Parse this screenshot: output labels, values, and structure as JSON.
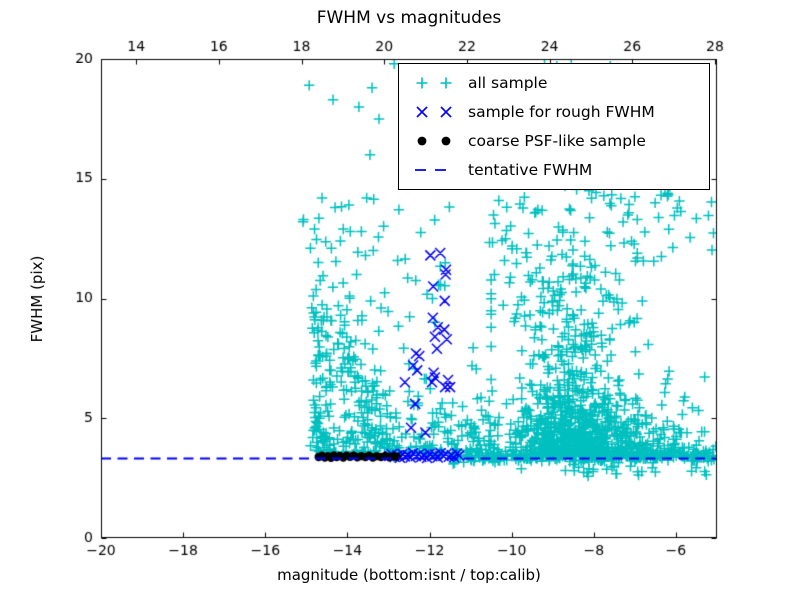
{
  "figure": {
    "background": "#ffffff"
  },
  "chart_data": {
    "type": "scatter",
    "title": "FWHM vs magnitudes",
    "xlabel": "magnitude (bottom:isnt / top:calib)",
    "ylabel": "FWHM (pix)",
    "xlim": [
      -20,
      -5
    ],
    "ylim": [
      0,
      20
    ],
    "grid": false,
    "legend_position": "upper right",
    "x_ticks_bottom": {
      "values": [
        -20,
        -18,
        -16,
        -14,
        -12,
        -10,
        -8,
        -6
      ],
      "labels": [
        "−20",
        "−18",
        "−16",
        "−14",
        "−12",
        "−10",
        "−8",
        "−6"
      ]
    },
    "x_axis_top": {
      "range": [
        13.15,
        28.05
      ],
      "values": [
        14,
        16,
        18,
        20,
        22,
        24,
        26,
        28
      ],
      "labels": [
        "14",
        "16",
        "18",
        "20",
        "22",
        "24",
        "26",
        "28"
      ]
    },
    "y_ticks": {
      "values": [
        0,
        5,
        10,
        15,
        20
      ],
      "labels": [
        "0",
        "5",
        "10",
        "15",
        "20"
      ]
    },
    "tentative_fwhm": 3.32,
    "seed": 7,
    "series": [
      {
        "name": "all sample",
        "marker": "plus",
        "color": "#00bfbf",
        "points": [
          [
            -14.93,
            18.9
          ],
          [
            -14.35,
            18.3
          ],
          [
            -13.4,
            18.8
          ],
          [
            -12.86,
            19.8
          ],
          [
            -12.23,
            19.5
          ],
          [
            -11.86,
            19.5
          ],
          [
            -11.55,
            19.1
          ],
          [
            -12.02,
            19.0
          ],
          [
            -15.08,
            13.2
          ],
          [
            -14.71,
            11.5
          ],
          [
            -14.39,
            12.1
          ],
          [
            -13.93,
            12.8
          ],
          [
            -13.56,
            11.8
          ],
          [
            -14.22,
            9.7
          ],
          [
            -13.18,
            9.6
          ],
          [
            -13.72,
            18.0
          ],
          [
            -13.23,
            17.5
          ],
          [
            -13.45,
            16.0
          ],
          [
            -13.53,
            14.2
          ],
          [
            -14.3,
            13.8
          ],
          [
            -15.07,
            13.3
          ],
          [
            -14.8,
            12.9
          ],
          [
            -14.1,
            12.9
          ],
          [
            -13.66,
            12.8
          ],
          [
            -14.17,
            12.4
          ],
          [
            -13.37,
            12.0
          ],
          [
            -14.9,
            12.1
          ],
          [
            -9.2,
            19.8
          ],
          [
            -8.9,
            19.7
          ],
          [
            -8.55,
            19.8
          ],
          [
            -7.6,
            19.7
          ],
          [
            -7.75,
            19.3
          ],
          [
            -7.04,
            18.3
          ],
          [
            -6.38,
            18.9
          ],
          [
            -8.53,
            17.5
          ],
          [
            -6.05,
            17.1
          ],
          [
            -6.6,
            16.4
          ],
          [
            -8.75,
            15.4
          ],
          [
            -8.7,
            14.7
          ],
          [
            -5.6,
            15.9
          ],
          [
            -5.3,
            14.9
          ],
          [
            -10.15,
            12.5
          ],
          [
            -10.42,
            11.0
          ],
          [
            -9.55,
            16.1
          ],
          [
            -7.3,
            16.8
          ],
          [
            -6.9,
            15.6
          ]
        ],
        "clusters": [
          {
            "n": 300,
            "x": {
              "d": "u",
              "a": -11.45,
              "b": -5.03
            },
            "y": {
              "d": "n",
              "m": 3.42,
              "s": 0.13
            }
          },
          {
            "n": 25,
            "x": {
              "d": "u",
              "a": -14.6,
              "b": -11.5
            },
            "y": {
              "d": "n",
              "m": 3.58,
              "s": 0.1
            }
          },
          {
            "n": 480,
            "x": {
              "d": "n",
              "m": -8.55,
              "s": 0.6,
              "min": -10.8,
              "max": -5.05
            },
            "y": {
              "d": "e",
              "base": 3.45,
              "scale": 1.7,
              "max": 12.3
            }
          },
          {
            "n": 420,
            "x": {
              "d": "n",
              "m": -7.9,
              "s": 1.2,
              "min": -10.8,
              "max": -5.03
            },
            "y": {
              "d": "e",
              "base": 3.4,
              "scale": 0.95,
              "max": 7.0
            }
          },
          {
            "n": 120,
            "x": {
              "d": "n",
              "m": -8.6,
              "s": 0.9,
              "min": -10.5,
              "max": -5.1
            },
            "y": {
              "d": "u",
              "a": 7.5,
              "b": 11.5
            }
          },
          {
            "n": 85,
            "x": {
              "d": "u",
              "a": -10.6,
              "b": -5.05
            },
            "y": {
              "d": "u",
              "a": 11.5,
              "b": 14.5
            }
          },
          {
            "n": 22,
            "x": {
              "d": "u",
              "a": -9.4,
              "b": -5.2
            },
            "y": {
              "d": "u",
              "a": 14.5,
              "b": 16.6
            }
          },
          {
            "n": 170,
            "x": {
              "d": "u",
              "a": -14.85,
              "b": -11.35
            },
            "y": {
              "d": "e",
              "base": 3.5,
              "scale": 1.25,
              "max": 8.6
            }
          },
          {
            "n": 38,
            "x": {
              "d": "u",
              "a": -14.85,
              "b": -11.4
            },
            "y": {
              "d": "u",
              "a": 8.6,
              "b": 14.2
            }
          },
          {
            "n": 48,
            "x": {
              "d": "n",
              "m": -14.72,
              "s": 0.09,
              "min": -15.0,
              "max": -14.5
            },
            "y": {
              "d": "u",
              "a": 3.6,
              "b": 11.2
            }
          },
          {
            "n": 55,
            "x": {
              "d": "n",
              "m": -14.15,
              "s": 0.28
            },
            "y": {
              "d": "n",
              "m": 7.6,
              "s": 1.1
            }
          },
          {
            "n": 45,
            "x": {
              "d": "n",
              "m": -13.55,
              "s": 0.3
            },
            "y": {
              "d": "n",
              "m": 5.6,
              "s": 0.9
            }
          },
          {
            "n": 45,
            "x": {
              "d": "u",
              "a": -11.35,
              "b": -10.3
            },
            "y": {
              "d": "e",
              "base": 3.5,
              "scale": 1.3,
              "max": 8.5
            }
          },
          {
            "n": 25,
            "x": {
              "d": "u",
              "a": -9.8,
              "b": -5.1
            },
            "y": {
              "d": "u",
              "a": 2.55,
              "b": 3.1
            }
          }
        ]
      },
      {
        "name": "sample for rough FWHM",
        "marker": "x",
        "color": "#0000ff",
        "points": [
          [
            -12.98,
            3.42
          ],
          [
            -12.92,
            3.5
          ],
          [
            -12.85,
            3.38
          ],
          [
            -12.78,
            3.45
          ],
          [
            -12.72,
            3.35
          ],
          [
            -12.66,
            3.52
          ],
          [
            -12.6,
            3.4
          ],
          [
            -12.53,
            3.46
          ],
          [
            -12.46,
            3.36
          ],
          [
            -12.4,
            3.55
          ],
          [
            -12.33,
            3.42
          ],
          [
            -12.26,
            3.5
          ],
          [
            -12.2,
            3.38
          ],
          [
            -12.13,
            3.44
          ],
          [
            -12.06,
            3.34
          ],
          [
            -12.0,
            3.52
          ],
          [
            -11.93,
            3.41
          ],
          [
            -11.86,
            3.48
          ],
          [
            -11.8,
            3.36
          ],
          [
            -11.73,
            3.54
          ],
          [
            -11.66,
            3.43
          ],
          [
            -11.6,
            3.5
          ],
          [
            -11.53,
            3.39
          ],
          [
            -11.46,
            3.46
          ],
          [
            -11.4,
            3.37
          ],
          [
            -11.33,
            3.53
          ],
          [
            -11.28,
            3.44
          ],
          [
            -11.98,
            11.8
          ],
          [
            -11.74,
            11.9
          ],
          [
            -11.6,
            11.2
          ],
          [
            -11.61,
            11.0
          ],
          [
            -11.91,
            10.5
          ],
          [
            -11.63,
            9.9
          ],
          [
            -11.92,
            9.2
          ],
          [
            -11.8,
            8.8
          ],
          [
            -11.64,
            8.7
          ],
          [
            -11.87,
            8.4
          ],
          [
            -11.58,
            8.3
          ],
          [
            -11.82,
            7.9
          ],
          [
            -12.33,
            7.7
          ],
          [
            -12.25,
            7.6
          ],
          [
            -12.4,
            7.2
          ],
          [
            -12.3,
            7.0
          ],
          [
            -11.9,
            6.9
          ],
          [
            -11.87,
            6.7
          ],
          [
            -12.6,
            6.5
          ],
          [
            -11.94,
            6.5
          ],
          [
            -11.55,
            6.6
          ],
          [
            -11.5,
            6.3
          ],
          [
            -11.62,
            6.3
          ],
          [
            -12.35,
            5.6
          ],
          [
            -12.1,
            4.4
          ],
          [
            -12.45,
            4.6
          ]
        ]
      },
      {
        "name": "coarse PSF-like sample",
        "marker": "dot",
        "color": "#000000",
        "points": [
          [
            -14.7,
            3.38
          ],
          [
            -14.62,
            3.44
          ],
          [
            -14.55,
            3.36
          ],
          [
            -14.48,
            3.42
          ],
          [
            -14.4,
            3.35
          ],
          [
            -14.33,
            3.45
          ],
          [
            -14.26,
            3.38
          ],
          [
            -14.18,
            3.43
          ],
          [
            -14.1,
            3.36
          ],
          [
            -14.02,
            3.44
          ],
          [
            -13.93,
            3.39
          ],
          [
            -13.85,
            3.45
          ],
          [
            -13.76,
            3.37
          ],
          [
            -13.66,
            3.42
          ],
          [
            -13.56,
            3.38
          ],
          [
            -13.47,
            3.44
          ],
          [
            -13.38,
            3.36
          ],
          [
            -13.28,
            3.42
          ],
          [
            -13.18,
            3.38
          ],
          [
            -13.08,
            3.43
          ],
          [
            -12.98,
            3.37
          ],
          [
            -12.88,
            3.42
          ],
          [
            -12.8,
            3.39
          ]
        ]
      },
      {
        "name": "tentative FWHM",
        "marker": "dashed-line",
        "color": "#0000ff",
        "y": 3.32
      }
    ]
  }
}
